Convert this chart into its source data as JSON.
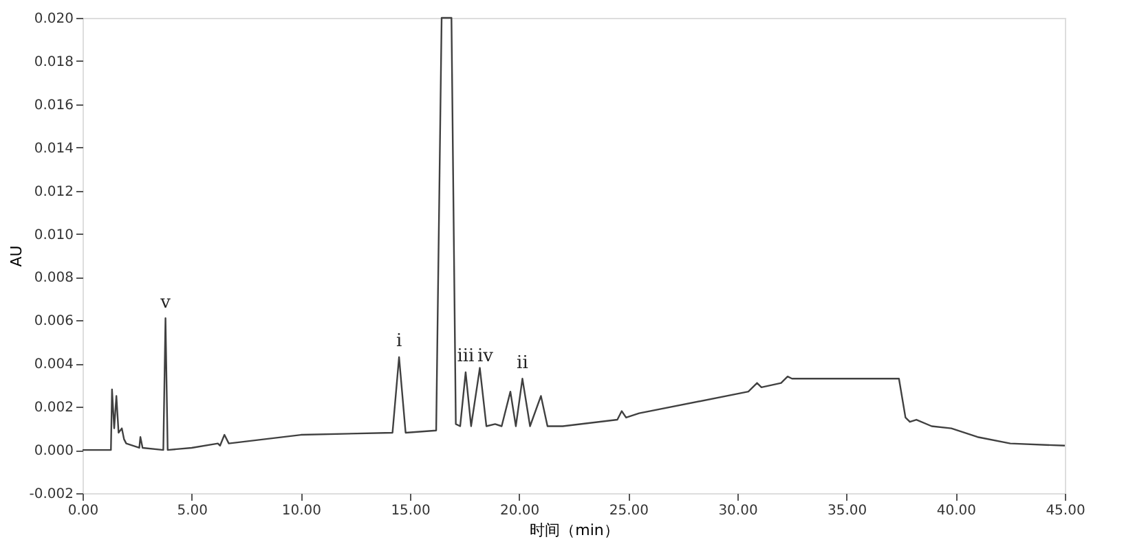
{
  "chart_data": {
    "type": "line",
    "xlabel": "时间（min）",
    "ylabel": "AU",
    "xlim": [
      0,
      45
    ],
    "ylim": [
      -0.002,
      0.02
    ],
    "xticks": [
      {
        "value": 0,
        "label": "0.00"
      },
      {
        "value": 5,
        "label": "5.00"
      },
      {
        "value": 10,
        "label": "10.00"
      },
      {
        "value": 15,
        "label": "15.00"
      },
      {
        "value": 20,
        "label": "20.00"
      },
      {
        "value": 25,
        "label": "25.00"
      },
      {
        "value": 30,
        "label": "30.00"
      },
      {
        "value": 35,
        "label": "35.00"
      },
      {
        "value": 40,
        "label": "40.00"
      },
      {
        "value": 45,
        "label": "45.00"
      }
    ],
    "yticks": [
      {
        "value": -0.002,
        "label": "-0.002"
      },
      {
        "value": 0,
        "label": "0.000"
      },
      {
        "value": 0.002,
        "label": "0.002"
      },
      {
        "value": 0.004,
        "label": "0.004"
      },
      {
        "value": 0.006,
        "label": "0.006"
      },
      {
        "value": 0.008,
        "label": "0.008"
      },
      {
        "value": 0.01,
        "label": "0.010"
      },
      {
        "value": 0.012,
        "label": "0.012"
      },
      {
        "value": 0.014,
        "label": "0.014"
      },
      {
        "value": 0.016,
        "label": "0.016"
      },
      {
        "value": 0.018,
        "label": "0.018"
      },
      {
        "value": 0.02,
        "label": "0.020"
      }
    ],
    "grid": false,
    "marker": "none",
    "line_style": "solid",
    "series": [
      {
        "color": "#404040",
        "x": [
          0,
          1.3,
          1.35,
          1.45,
          1.55,
          1.65,
          1.8,
          1.9,
          2.0,
          2.6,
          2.65,
          2.75,
          3.7,
          3.8,
          3.9,
          5.0,
          6.2,
          6.3,
          6.5,
          6.7,
          10.0,
          14.2,
          14.5,
          14.8,
          16.2,
          16.45,
          16.9,
          17.1,
          17.3,
          17.55,
          17.8,
          18.2,
          18.5,
          18.9,
          19.2,
          19.6,
          19.85,
          20.15,
          20.5,
          21.0,
          21.3,
          22.0,
          24.5,
          24.7,
          24.9,
          25.5,
          30.5,
          30.9,
          31.1,
          32.0,
          32.3,
          32.5,
          37.4,
          37.7,
          37.9,
          38.2,
          38.9,
          39.8,
          41.0,
          42.5,
          45.0
        ],
        "values": [
          0,
          0,
          0.0028,
          0.001,
          0.0025,
          0.0008,
          0.001,
          0.0005,
          0.0003,
          0.0001,
          0.0006,
          0.0001,
          0,
          0.0061,
          0,
          0.0001,
          0.0003,
          0.0002,
          0.0007,
          0.0003,
          0.0007,
          0.0008,
          0.0043,
          0.0008,
          0.0009,
          0.02,
          0.02,
          0.0012,
          0.0011,
          0.0036,
          0.0011,
          0.0038,
          0.0011,
          0.0012,
          0.0011,
          0.0027,
          0.0011,
          0.0033,
          0.0011,
          0.0025,
          0.0011,
          0.0011,
          0.0014,
          0.0018,
          0.0015,
          0.0017,
          0.0027,
          0.0031,
          0.0029,
          0.0031,
          0.0034,
          0.0033,
          0.0033,
          0.0015,
          0.0013,
          0.0014,
          0.0011,
          0.001,
          0.0006,
          0.0003,
          0.0002
        ]
      }
    ],
    "annotations": [
      {
        "text": "v",
        "x": 3.8,
        "y": 0.0064
      },
      {
        "text": "i",
        "x": 14.5,
        "y": 0.0046
      },
      {
        "text": "iii",
        "x": 17.55,
        "y": 0.0039
      },
      {
        "text": "iv",
        "x": 18.45,
        "y": 0.0039
      },
      {
        "text": "ii",
        "x": 20.15,
        "y": 0.0036
      }
    ]
  }
}
